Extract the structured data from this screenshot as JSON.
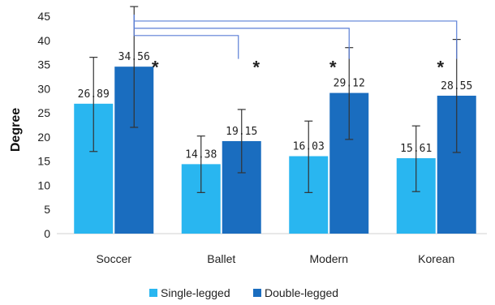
{
  "chart_data": {
    "type": "bar",
    "ylabel": "Degree",
    "xlabel": "",
    "ylim": [
      0,
      45
    ],
    "yticks": [
      0,
      5,
      10,
      15,
      20,
      25,
      30,
      35,
      40,
      45
    ],
    "grid": false,
    "legend_position": "bottom",
    "categories": [
      "Soccer",
      "Ballet",
      "Modern",
      "Korean"
    ],
    "series": [
      {
        "name": "Single-legged",
        "color": "#29B6F0",
        "values": [
          26.89,
          14.38,
          16.03,
          15.61
        ],
        "labels": [
          "26.89",
          "14.38",
          "16.03",
          "15.61"
        ],
        "error_low": [
          17.0,
          8.5,
          8.5,
          8.7
        ],
        "error_high": [
          36.5,
          20.2,
          23.3,
          22.3
        ]
      },
      {
        "name": "Double-legged",
        "color": "#1A6DBF",
        "values": [
          34.56,
          19.15,
          29.12,
          28.55
        ],
        "labels": [
          "34.56",
          "19.15",
          "29.12",
          "28.55"
        ],
        "error_low": [
          22.0,
          12.6,
          19.5,
          16.8
        ],
        "error_high": [
          47.0,
          25.7,
          38.5,
          40.2
        ]
      }
    ],
    "annotations": {
      "significance_symbol": "*",
      "stars": [
        {
          "category": 0,
          "series": 1,
          "y": 35.5
        },
        {
          "category": 1,
          "series": 1,
          "y": 35.5
        },
        {
          "category": 2,
          "series": 1,
          "y": 35.5
        },
        {
          "category": 3,
          "series": 1,
          "y": 35.5
        }
      ],
      "brackets": [
        {
          "from_category": 0,
          "to_category": 1,
          "y": 41.0
        },
        {
          "from_category": 0,
          "to_category": 2,
          "y": 42.5
        },
        {
          "from_category": 0,
          "to_category": 3,
          "y": 44.0
        }
      ]
    }
  }
}
